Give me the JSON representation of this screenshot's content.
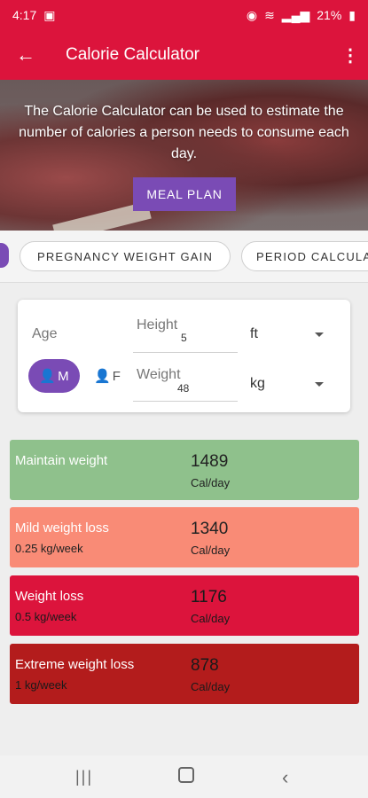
{
  "status": {
    "time": "4:17",
    "battery": "21%"
  },
  "appbar": {
    "title": "Calorie Calculator",
    "back_icon": "arrow-left-icon",
    "menu_icon": "more-vert-icon"
  },
  "hero": {
    "description": "The Calorie Calculator can be used to estimate the number of calories a person needs to consume each day.",
    "button_label": "MEAL PLAN"
  },
  "chips": [
    "PREGNANCY WEIGHT GAIN",
    "PERIOD CALCULA"
  ],
  "form": {
    "age_label": "Age",
    "height_label": "Height",
    "height_value": "5",
    "height_unit": "ft",
    "weight_label": "Weight",
    "weight_value": "48",
    "weight_unit": "kg",
    "male_label": "M",
    "female_label": "F"
  },
  "results": [
    {
      "name": "Maintain weight",
      "rate": "",
      "calories": "1489",
      "unit": "Cal/day",
      "color": "#8fc18c"
    },
    {
      "name": "Mild weight loss",
      "rate": "0.25 kg/week",
      "calories": "1340",
      "unit": "Cal/day",
      "color": "#f98b76"
    },
    {
      "name": "Weight loss",
      "rate": "0.5 kg/week",
      "calories": "1176",
      "unit": "Cal/day",
      "color": "#dc143c"
    },
    {
      "name": "Extreme weight loss",
      "rate": "1 kg/week",
      "calories": "878",
      "unit": "Cal/day",
      "color": "#b31c1c"
    }
  ],
  "colors": {
    "primary": "#dc143c",
    "accent": "#7a4bb5"
  }
}
